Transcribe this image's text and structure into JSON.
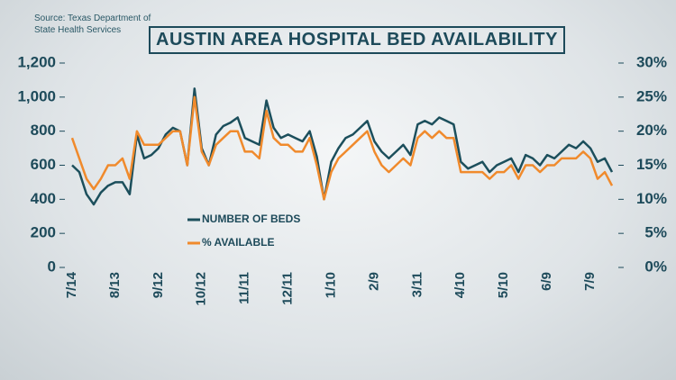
{
  "source": "Source: Texas Department of State Health Services",
  "chart_data": {
    "type": "line",
    "title": "AUSTIN AREA HOSPITAL BED AVAILABILITY",
    "categories": [
      "7/14",
      null,
      null,
      null,
      null,
      null,
      "8/13",
      null,
      null,
      null,
      null,
      null,
      "9/12",
      null,
      null,
      null,
      null,
      null,
      "10/12",
      null,
      null,
      null,
      null,
      null,
      "11/11",
      null,
      null,
      null,
      null,
      null,
      "12/11",
      null,
      null,
      null,
      null,
      null,
      "1/10",
      null,
      null,
      null,
      null,
      null,
      "2/9",
      null,
      null,
      null,
      null,
      null,
      "3/11",
      null,
      null,
      null,
      null,
      null,
      "4/10",
      null,
      null,
      null,
      null,
      null,
      "5/10",
      null,
      null,
      null,
      null,
      null,
      "6/9",
      null,
      null,
      null,
      null,
      null,
      "7/9",
      null,
      null,
      null
    ],
    "series": [
      {
        "name": "NUMBER OF BEDS",
        "color": "#1c4f5c",
        "axis": "y",
        "values": [
          600,
          560,
          430,
          370,
          440,
          480,
          500,
          500,
          430,
          780,
          640,
          660,
          700,
          780,
          820,
          800,
          600,
          1050,
          700,
          600,
          780,
          830,
          850,
          880,
          760,
          740,
          720,
          980,
          820,
          760,
          780,
          760,
          740,
          800,
          650,
          400,
          620,
          700,
          760,
          780,
          820,
          860,
          740,
          680,
          640,
          680,
          720,
          660,
          840,
          860,
          840,
          880,
          860,
          840,
          620,
          580,
          600,
          620,
          560,
          600,
          620,
          640,
          560,
          660,
          640,
          600,
          660,
          640,
          680,
          720,
          700,
          740,
          700,
          620,
          640,
          560
        ]
      },
      {
        "name": "% AVAILABLE",
        "color": "#f08a2c",
        "axis": "y2",
        "values": [
          19,
          16,
          13,
          11.5,
          13,
          15,
          15,
          16,
          13,
          20,
          18,
          18,
          18,
          19,
          20,
          20,
          15,
          25,
          17,
          15,
          18,
          19,
          20,
          20,
          17,
          17,
          16,
          23,
          19,
          18,
          18,
          17,
          17,
          19,
          15,
          10,
          14,
          16,
          17,
          18,
          19,
          20,
          17,
          15,
          14,
          15,
          16,
          15,
          19,
          20,
          19,
          20,
          19,
          19,
          14,
          14,
          14,
          14,
          13,
          14,
          14,
          15,
          13,
          15,
          15,
          14,
          15,
          15,
          16,
          16,
          16,
          17,
          16,
          13,
          14,
          12
        ]
      }
    ],
    "ylim": [
      0,
      1200
    ],
    "yticks": [
      0,
      200,
      400,
      600,
      800,
      {
        "value": 1000,
        "label": "1,000"
      },
      {
        "value": 1200,
        "label": "1,200"
      }
    ],
    "y2lim": [
      0,
      30
    ],
    "y2ticks": [
      {
        "value": 0,
        "label": "0%"
      },
      {
        "value": 5,
        "label": "5%"
      },
      {
        "value": 10,
        "label": "10%"
      },
      {
        "value": 15,
        "label": "15%"
      },
      {
        "value": 20,
        "label": "20%"
      },
      {
        "value": 25,
        "label": "25%"
      },
      {
        "value": 30,
        "label": "30%"
      }
    ]
  }
}
